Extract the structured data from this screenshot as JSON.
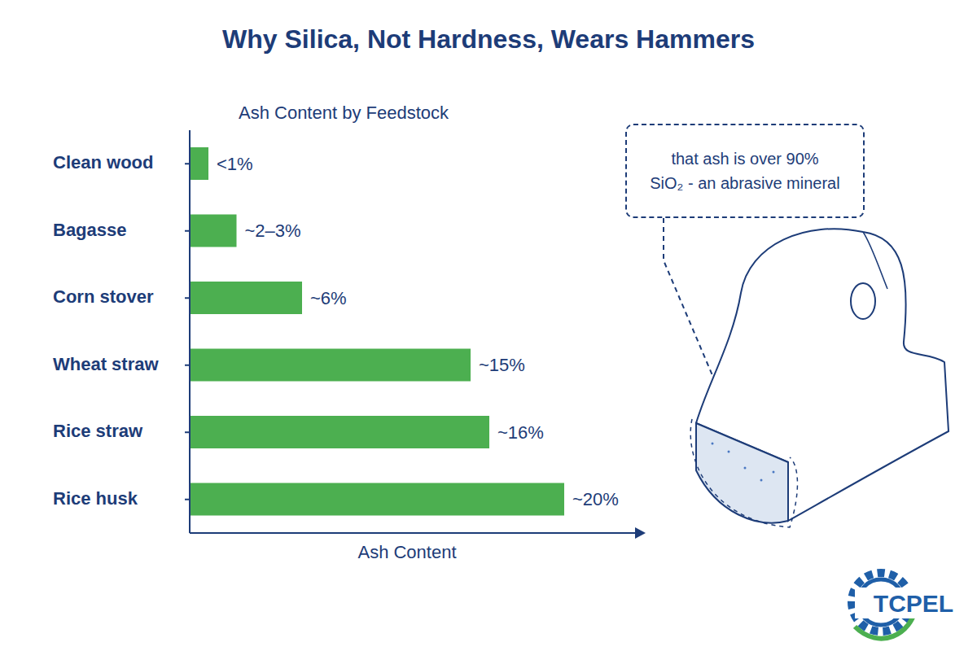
{
  "chart_data": {
    "type": "bar",
    "title": "Why Silica, Not Hardness, Wears Hammers",
    "subtitle": "Ash Content by Feedstock",
    "x_label": "Ash Content",
    "orientation": "horizontal",
    "categories": [
      "Clean wood",
      "Bagasse",
      "Corn stover",
      "Wheat straw",
      "Rice straw",
      "Rice husk"
    ],
    "values": [
      1,
      2.5,
      6,
      15,
      16,
      20
    ],
    "value_labels": [
      "<1%",
      "~2–3%",
      "~6%",
      "~15%",
      "~16%",
      "~20%"
    ],
    "data_labels": true,
    "color": "#4caf50",
    "xlim": [
      0,
      24
    ],
    "grid": false,
    "tick_labels": "y",
    "annotation": {
      "lines": [
        "that ash is over 90%",
        "SiO₂ - an abrasive mineral"
      ]
    }
  },
  "logo": {
    "text": "TCPEL"
  }
}
